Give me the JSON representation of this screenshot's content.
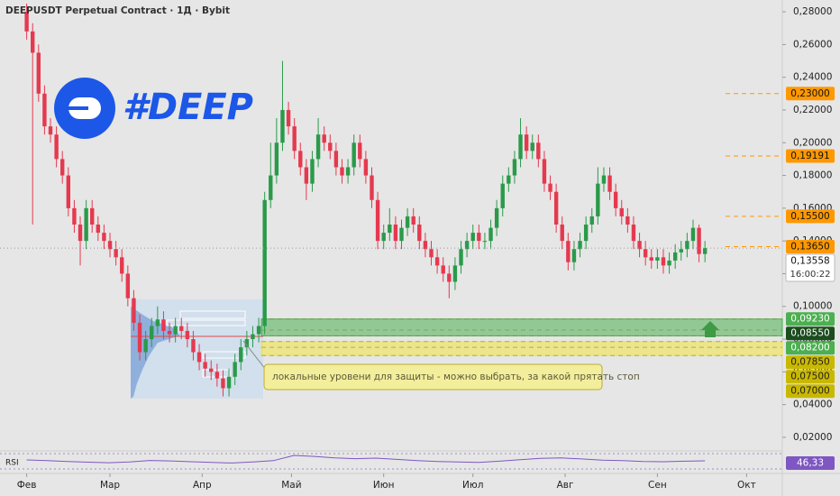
{
  "header": {
    "title": "DEEPUSDT Perpetual Contract · 1Д · Bybit",
    "logo_text": "#DEEP"
  },
  "chart_data": {
    "type": "candlestick",
    "up_color": "#2a9a4a",
    "down_color": "#e5394f",
    "open": [
      0.28,
      0.268,
      0.255,
      0.23,
      0.21,
      0.205,
      0.19,
      0.18,
      0.16,
      0.15,
      0.14,
      0.16,
      0.15,
      0.145,
      0.14,
      0.135,
      0.13,
      0.12,
      0.105,
      0.09,
      0.072,
      0.08,
      0.088,
      0.092,
      0.085,
      0.083,
      0.088,
      0.085,
      0.08,
      0.072,
      0.066,
      0.062,
      0.06,
      0.056,
      0.05,
      0.057,
      0.066,
      0.075,
      0.08,
      0.083,
      0.088,
      0.165,
      0.18,
      0.2,
      0.22,
      0.21,
      0.195,
      0.185,
      0.175,
      0.19,
      0.205,
      0.2,
      0.195,
      0.185,
      0.18,
      0.185,
      0.2,
      0.19,
      0.18,
      0.165,
      0.14,
      0.145,
      0.15,
      0.14,
      0.148,
      0.155,
      0.15,
      0.14,
      0.135,
      0.13,
      0.125,
      0.12,
      0.115,
      0.125,
      0.135,
      0.14,
      0.145,
      0.14,
      0.14,
      0.148,
      0.16,
      0.175,
      0.18,
      0.19,
      0.205,
      0.195,
      0.2,
      0.19,
      0.175,
      0.17,
      0.15,
      0.14,
      0.127,
      0.135,
      0.14,
      0.15,
      0.155,
      0.175,
      0.18,
      0.17,
      0.16,
      0.155,
      0.15,
      0.14,
      0.135,
      0.13,
      0.128,
      0.13,
      0.125,
      0.128,
      0.133,
      0.135,
      0.14,
      0.148,
      0.132
    ],
    "high": [
      0.285,
      0.273,
      0.26,
      0.235,
      0.215,
      0.21,
      0.195,
      0.185,
      0.165,
      0.155,
      0.165,
      0.165,
      0.155,
      0.15,
      0.145,
      0.14,
      0.135,
      0.125,
      0.11,
      0.095,
      0.085,
      0.093,
      0.1,
      0.097,
      0.09,
      0.093,
      0.093,
      0.09,
      0.085,
      0.077,
      0.071,
      0.067,
      0.065,
      0.061,
      0.062,
      0.071,
      0.08,
      0.085,
      0.088,
      0.093,
      0.17,
      0.2,
      0.215,
      0.25,
      0.225,
      0.215,
      0.2,
      0.19,
      0.195,
      0.215,
      0.21,
      0.205,
      0.2,
      0.19,
      0.19,
      0.205,
      0.205,
      0.195,
      0.185,
      0.17,
      0.15,
      0.16,
      0.155,
      0.153,
      0.16,
      0.16,
      0.155,
      0.145,
      0.14,
      0.135,
      0.13,
      0.125,
      0.13,
      0.14,
      0.145,
      0.15,
      0.15,
      0.145,
      0.153,
      0.165,
      0.18,
      0.185,
      0.195,
      0.215,
      0.21,
      0.205,
      0.205,
      0.195,
      0.18,
      0.175,
      0.155,
      0.145,
      0.14,
      0.145,
      0.155,
      0.16,
      0.185,
      0.185,
      0.185,
      0.175,
      0.165,
      0.16,
      0.155,
      0.145,
      0.14,
      0.135,
      0.135,
      0.135,
      0.133,
      0.138,
      0.14,
      0.145,
      0.153,
      0.15,
      0.14
    ],
    "low": [
      0.263,
      0.15,
      0.225,
      0.205,
      0.2,
      0.185,
      0.175,
      0.155,
      0.145,
      0.125,
      0.135,
      0.145,
      0.14,
      0.135,
      0.13,
      0.125,
      0.115,
      0.1,
      0.085,
      0.067,
      0.067,
      0.075,
      0.083,
      0.08,
      0.078,
      0.078,
      0.08,
      0.075,
      0.067,
      0.061,
      0.057,
      0.055,
      0.051,
      0.045,
      0.045,
      0.052,
      0.061,
      0.07,
      0.075,
      0.078,
      0.083,
      0.16,
      0.175,
      0.195,
      0.205,
      0.19,
      0.18,
      0.165,
      0.17,
      0.185,
      0.195,
      0.19,
      0.18,
      0.175,
      0.175,
      0.18,
      0.185,
      0.175,
      0.16,
      0.135,
      0.135,
      0.14,
      0.135,
      0.135,
      0.143,
      0.145,
      0.135,
      0.13,
      0.125,
      0.12,
      0.115,
      0.105,
      0.11,
      0.12,
      0.13,
      0.135,
      0.135,
      0.135,
      0.135,
      0.143,
      0.155,
      0.17,
      0.175,
      0.185,
      0.19,
      0.19,
      0.185,
      0.17,
      0.165,
      0.145,
      0.135,
      0.122,
      0.122,
      0.13,
      0.135,
      0.145,
      0.15,
      0.17,
      0.165,
      0.155,
      0.15,
      0.145,
      0.135,
      0.13,
      0.125,
      0.123,
      0.123,
      0.12,
      0.12,
      0.123,
      0.128,
      0.13,
      0.135,
      0.127,
      0.127
    ],
    "close": [
      0.268,
      0.255,
      0.23,
      0.21,
      0.205,
      0.19,
      0.18,
      0.16,
      0.15,
      0.14,
      0.16,
      0.15,
      0.145,
      0.14,
      0.135,
      0.13,
      0.12,
      0.105,
      0.09,
      0.072,
      0.08,
      0.088,
      0.092,
      0.085,
      0.083,
      0.088,
      0.085,
      0.08,
      0.072,
      0.066,
      0.062,
      0.06,
      0.056,
      0.05,
      0.057,
      0.066,
      0.075,
      0.08,
      0.083,
      0.088,
      0.165,
      0.18,
      0.2,
      0.22,
      0.21,
      0.195,
      0.185,
      0.175,
      0.19,
      0.205,
      0.2,
      0.195,
      0.185,
      0.18,
      0.185,
      0.2,
      0.19,
      0.18,
      0.165,
      0.14,
      0.145,
      0.15,
      0.14,
      0.148,
      0.155,
      0.15,
      0.14,
      0.135,
      0.13,
      0.125,
      0.12,
      0.115,
      0.125,
      0.135,
      0.14,
      0.145,
      0.14,
      0.14,
      0.148,
      0.16,
      0.175,
      0.18,
      0.19,
      0.205,
      0.195,
      0.2,
      0.19,
      0.175,
      0.17,
      0.15,
      0.14,
      0.127,
      0.135,
      0.14,
      0.15,
      0.155,
      0.175,
      0.18,
      0.17,
      0.16,
      0.155,
      0.15,
      0.14,
      0.135,
      0.13,
      0.128,
      0.13,
      0.125,
      0.128,
      0.133,
      0.135,
      0.14,
      0.148,
      0.132,
      0.1356
    ],
    "ylim": [
      0.0117,
      0.2872
    ],
    "yticks": [
      {
        "value": 0.28,
        "label": "0,28000"
      },
      {
        "value": 0.26,
        "label": "0,26000"
      },
      {
        "value": 0.24,
        "label": "0,24000"
      },
      {
        "value": 0.22,
        "label": "0,22000"
      },
      {
        "value": 0.2,
        "label": "0,20000"
      },
      {
        "value": 0.18,
        "label": "0,18000"
      },
      {
        "value": 0.16,
        "label": "0,16000"
      },
      {
        "value": 0.14,
        "label": "0,14000"
      },
      {
        "value": 0.12,
        "label": "0,12000"
      },
      {
        "value": 0.1,
        "label": "0,10000"
      },
      {
        "value": 0.08,
        "label": "0,08000"
      },
      {
        "value": 0.06,
        "label": "0,06000"
      },
      {
        "value": 0.04,
        "label": "0,04000"
      },
      {
        "value": 0.02,
        "label": "0,02000"
      }
    ],
    "xlim": [
      -4.485,
      127
    ],
    "xticks": [
      {
        "value": 0,
        "label": "Фев"
      },
      {
        "value": 14,
        "label": "Мар"
      },
      {
        "value": 29.5,
        "label": "Апр"
      },
      {
        "value": 44.5,
        "label": "Май"
      },
      {
        "value": 60,
        "label": "Июн"
      },
      {
        "value": 75,
        "label": "Июл"
      },
      {
        "value": 90.5,
        "label": "Авг"
      },
      {
        "value": 106,
        "label": "Сен"
      },
      {
        "value": 121,
        "label": "Окт"
      }
    ],
    "levels": {
      "color": "#ff9800",
      "tags": [
        {
          "value": 0.23,
          "label": "0,23000"
        },
        {
          "value": 0.19191,
          "label": "0,19191"
        },
        {
          "value": 0.155,
          "label": "0,15500"
        },
        {
          "value": 0.1365,
          "label": "0,13650"
        }
      ]
    },
    "current": {
      "value": 0.13558,
      "label": "0,13558",
      "countdown": "16:00:22"
    },
    "zones": [
      {
        "color": "#4caf50",
        "tags": [
          {
            "value": 0.0923,
            "label": "0,09230",
            "color": "#4caf50"
          },
          {
            "value": 0.0855,
            "label": "0,08550",
            "color": "#1b4d1e"
          },
          {
            "value": 0.082,
            "label": "0,08200",
            "color": "#4caf50"
          }
        ]
      },
      {
        "color": "#f0e442",
        "tags": [
          {
            "value": 0.0785,
            "label": "0,07850",
            "color": "#c9b800"
          },
          {
            "value": 0.075,
            "label": "0,07500",
            "color": "#c9b800"
          },
          {
            "value": 0.07,
            "label": "0,07000",
            "color": "#c9b800"
          }
        ]
      }
    ],
    "annotation": "локальные уровени для защиты - можно выбрать, за какой прятать стоп",
    "rsi": {
      "name": "RSI",
      "value": 46.33,
      "label": "46,33",
      "color": "#7e57c2",
      "ylim": [
        0,
        100
      ],
      "values": [
        50,
        47,
        44,
        41,
        39,
        42,
        48,
        46,
        43,
        40,
        38,
        42,
        47,
        68,
        64,
        58,
        55,
        57,
        52,
        47,
        44,
        42,
        40,
        45,
        51,
        56,
        58,
        54,
        49,
        47,
        44,
        43,
        45,
        46.33
      ]
    }
  }
}
